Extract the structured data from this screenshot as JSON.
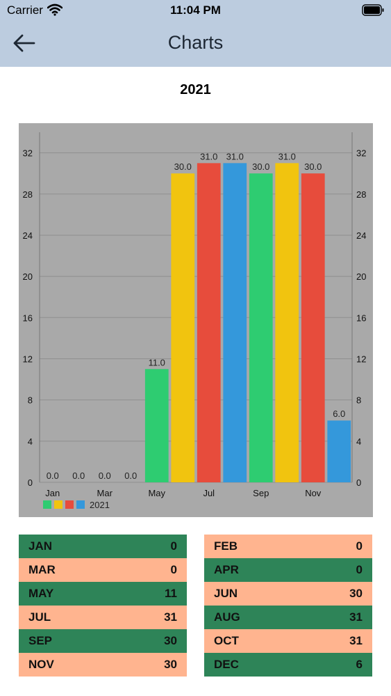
{
  "status_bar": {
    "carrier": "Carrier",
    "time": "11:04 PM"
  },
  "nav": {
    "title": "Charts"
  },
  "chart_data": {
    "type": "bar",
    "title": "2021",
    "categories": [
      "Jan",
      "Feb",
      "Mar",
      "Apr",
      "May",
      "Jun",
      "Jul",
      "Aug",
      "Sep",
      "Oct",
      "Nov",
      "Dec"
    ],
    "x_tick_labels": [
      "Jan",
      "",
      "Mar",
      "",
      "May",
      "",
      "Jul",
      "",
      "Sep",
      "",
      "Nov",
      ""
    ],
    "series": [
      {
        "name": "2021",
        "values": [
          0,
          0,
          0,
          0,
          11,
          30,
          31,
          31,
          30,
          31,
          30,
          6
        ]
      }
    ],
    "value_labels": [
      "0.0",
      "0.0",
      "0.0",
      "0.0",
      "11.0",
      "30.0",
      "31.0",
      "31.0",
      "30.0",
      "31.0",
      "30.0",
      "6.0"
    ],
    "bar_colors": [
      "#2ecc71",
      "#f1c40f",
      "#e74c3c",
      "#3498db"
    ],
    "ylim": [
      0,
      34
    ],
    "y_ticks": [
      0,
      4,
      8,
      12,
      16,
      20,
      24,
      28,
      32
    ],
    "y_axis": "left and right",
    "grid": true,
    "legend_placement": "bottom-left",
    "background": "#a9a9a9"
  },
  "table": {
    "left": [
      {
        "month": "JAN",
        "value": "0"
      },
      {
        "month": "MAR",
        "value": "0"
      },
      {
        "month": "MAY",
        "value": "11"
      },
      {
        "month": "JUL",
        "value": "31"
      },
      {
        "month": "SEP",
        "value": "30"
      },
      {
        "month": "NOV",
        "value": "30"
      }
    ],
    "right": [
      {
        "month": "FEB",
        "value": "0"
      },
      {
        "month": "APR",
        "value": "0"
      },
      {
        "month": "JUN",
        "value": "30"
      },
      {
        "month": "AUG",
        "value": "31"
      },
      {
        "month": "OCT",
        "value": "31"
      },
      {
        "month": "DEC",
        "value": "6"
      }
    ],
    "colors": {
      "green": "#2e8458",
      "peach": "#ffb48f"
    }
  },
  "icons": {
    "back": "arrow-left-icon",
    "wifi": "wifi-icon",
    "battery": "battery-icon"
  }
}
